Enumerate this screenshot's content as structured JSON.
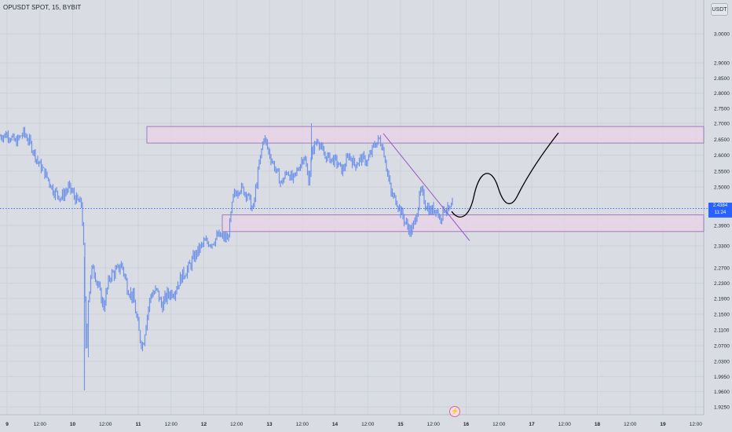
{
  "header": {
    "symbol_line": "OPUSDT SPOT, 15, BYBIT"
  },
  "currency_button": {
    "label": "USDT"
  },
  "price_axis": {
    "ticks": [
      {
        "label": "3.0000",
        "value": 3.0
      },
      {
        "label": "2.9000",
        "value": 2.9
      },
      {
        "label": "2.8500",
        "value": 2.85
      },
      {
        "label": "2.8000",
        "value": 2.8
      },
      {
        "label": "2.7500",
        "value": 2.75
      },
      {
        "label": "2.7000",
        "value": 2.7
      },
      {
        "label": "2.6500",
        "value": 2.65
      },
      {
        "label": "2.6000",
        "value": 2.6
      },
      {
        "label": "2.5500",
        "value": 2.55
      },
      {
        "label": "2.5000",
        "value": 2.5
      },
      {
        "label": "2.3900",
        "value": 2.39
      },
      {
        "label": "2.3300",
        "value": 2.33
      },
      {
        "label": "2.2700",
        "value": 2.27
      },
      {
        "label": "2.2300",
        "value": 2.23
      },
      {
        "label": "2.1900",
        "value": 2.19
      },
      {
        "label": "2.1500",
        "value": 2.15
      },
      {
        "label": "2.1100",
        "value": 2.11
      },
      {
        "label": "2.0700",
        "value": 2.07
      },
      {
        "label": "2.0300",
        "value": 2.03
      },
      {
        "label": "1.9950",
        "value": 1.995
      },
      {
        "label": "1.9600",
        "value": 1.96
      },
      {
        "label": "1.9250",
        "value": 1.925
      }
    ]
  },
  "current_price": {
    "label": "2.4384",
    "countdown": "11:24",
    "value": 2.4384
  },
  "time_axis": {
    "ticks": [
      "9",
      "12:00",
      "10",
      "12:00",
      "11",
      "12:00",
      "12",
      "12:00",
      "13",
      "12:00",
      "14",
      "12:00",
      "15",
      "12:00",
      "16",
      "12:00",
      "17",
      "12:00",
      "18",
      "12:00",
      "19",
      "12:00"
    ],
    "bold_ticks": [
      "9",
      "10",
      "11",
      "12",
      "13",
      "14",
      "15",
      "16",
      "17",
      "18",
      "19"
    ]
  },
  "zones": [
    {
      "name": "resistance-zone",
      "top": 2.69,
      "bottom": 2.638
    },
    {
      "name": "support-zone",
      "top": 2.42,
      "bottom": 2.372
    }
  ],
  "colors": {
    "background": "#d9dce3",
    "candles": "#6f93e8",
    "zone_fill": "#e6d3e6",
    "zone_border": "#8c68b4",
    "trendline": "#9b59c7",
    "price_line": "#2962ff",
    "projection": "#000000"
  },
  "event_icon": "lightning-icon"
}
